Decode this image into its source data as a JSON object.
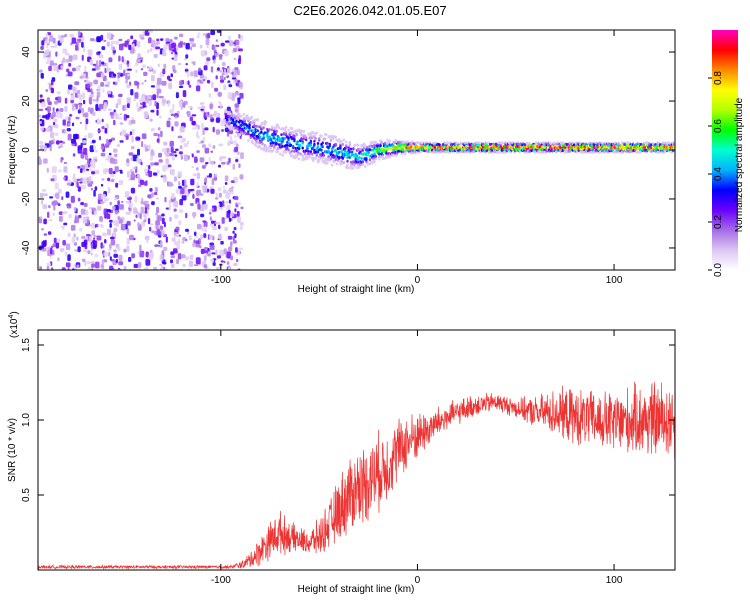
{
  "title": "C2E6.2026.042.01.05.E07",
  "chart_data": [
    {
      "type": "heatmap",
      "name": "spectrogram",
      "xlabel": "Height of straight line (km)",
      "ylabel": "Frequency (Hz)",
      "xlim": [
        -193,
        131
      ],
      "ylim": [
        -49,
        49
      ],
      "xticks": [
        -100,
        0,
        100
      ],
      "yticks": [
        -40,
        -20,
        0,
        20,
        40
      ],
      "noise_region": {
        "x": [
          -193,
          -90
        ],
        "y": [
          -49,
          49
        ]
      },
      "ridge": {
        "x": [
          -98,
          -90,
          -80,
          -70,
          -60,
          -50,
          -40,
          -30,
          -20,
          -10,
          0,
          20,
          40,
          60,
          80,
          100,
          120,
          131
        ],
        "freq": [
          13,
          10,
          6,
          4,
          2,
          1,
          -1,
          -3,
          0,
          1,
          1,
          1,
          1,
          1,
          1,
          1,
          1,
          1
        ],
        "width": [
          3,
          5,
          6,
          6,
          6,
          6,
          6,
          5,
          4,
          3,
          2,
          2,
          2,
          2,
          2,
          2,
          2,
          2
        ],
        "amplitude": [
          0.35,
          0.4,
          0.45,
          0.45,
          0.45,
          0.45,
          0.45,
          0.5,
          0.6,
          0.8,
          0.9,
          0.95,
          0.95,
          0.95,
          0.95,
          0.95,
          0.9,
          0.85
        ]
      },
      "colorbar": {
        "label": "Normalized spectral amplitude",
        "ticks": [
          0.0,
          0.2,
          0.4,
          0.6,
          0.8
        ],
        "tick_labels": [
          "0.0",
          "0.2",
          "0.4",
          "0.6",
          "0.8"
        ],
        "range": [
          0,
          1
        ],
        "colors": [
          "#ffffff",
          "#dcc6f2",
          "#a66ae6",
          "#6a00ff",
          "#0000ff",
          "#00b4ff",
          "#00ffd0",
          "#00ff00",
          "#b4ff00",
          "#ffff00",
          "#ff8800",
          "#ff0000",
          "#ff00c0"
        ]
      }
    },
    {
      "type": "line",
      "name": "snr",
      "xlabel": "Height of straight line (km)",
      "ylabel": "SNR (10 * v/v)",
      "scale_label": "(x10",
      "scale_exp": "4",
      "xlim": [
        -193,
        131
      ],
      "ylim": [
        0,
        1.6
      ],
      "xticks": [
        -100,
        0,
        100
      ],
      "yticks": [
        0.5,
        1.0,
        1.5
      ],
      "ytick_labels": [
        "0.5",
        "1.0",
        "1.5"
      ],
      "color": "#ee3333",
      "envelope": {
        "x": [
          -193,
          -95,
          -88,
          -82,
          -75,
          -70,
          -65,
          -60,
          -55,
          -50,
          -45,
          -40,
          -35,
          -30,
          -25,
          -20,
          -15,
          -10,
          -5,
          0,
          5,
          10,
          20,
          30,
          40,
          50,
          60,
          70,
          80,
          90,
          100,
          110,
          120,
          131
        ],
        "mean": [
          0.02,
          0.02,
          0.04,
          0.1,
          0.2,
          0.25,
          0.22,
          0.2,
          0.18,
          0.22,
          0.3,
          0.4,
          0.5,
          0.55,
          0.6,
          0.65,
          0.7,
          0.8,
          0.85,
          0.9,
          0.93,
          0.98,
          1.05,
          1.1,
          1.12,
          1.08,
          1.05,
          1.05,
          1.02,
          1.0,
          0.98,
          1.0,
          1.0,
          1.0
        ],
        "spread": [
          0.01,
          0.01,
          0.03,
          0.08,
          0.12,
          0.14,
          0.1,
          0.08,
          0.08,
          0.12,
          0.15,
          0.2,
          0.25,
          0.25,
          0.25,
          0.25,
          0.22,
          0.2,
          0.18,
          0.15,
          0.12,
          0.1,
          0.08,
          0.07,
          0.06,
          0.06,
          0.1,
          0.15,
          0.18,
          0.18,
          0.2,
          0.22,
          0.25,
          0.25
        ]
      }
    }
  ]
}
